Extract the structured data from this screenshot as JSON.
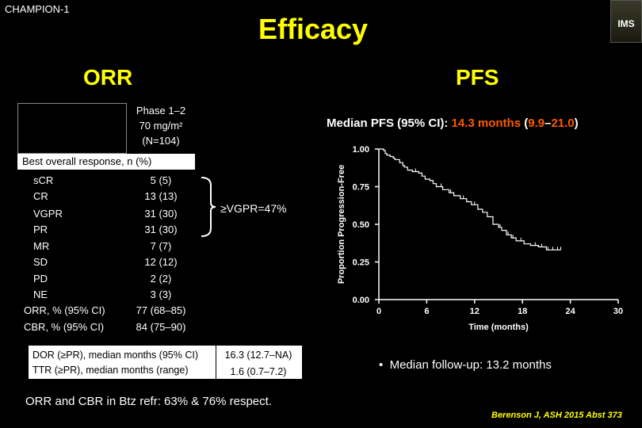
{
  "study_tag": "CHAMPION-1",
  "title": "Efficacy",
  "logo_text": "IMS",
  "orr": {
    "heading": "ORR",
    "column_header": [
      "Phase 1–2",
      "70 mg/m²",
      "(N=104)"
    ],
    "section_label": "Best overall response, n (%)",
    "rows": [
      {
        "label": "sCR",
        "value": "5 (5)"
      },
      {
        "label": "CR",
        "value": "13 (13)"
      },
      {
        "label": "VGPR",
        "value": "31 (30)"
      },
      {
        "label": "PR",
        "value": "31 (30)"
      },
      {
        "label": "MR",
        "value": "7 (7)"
      },
      {
        "label": "SD",
        "value": "12 (12)"
      },
      {
        "label": "PD",
        "value": "2 (2)"
      },
      {
        "label": "NE",
        "value": "3 (3)"
      }
    ],
    "summary_rows": [
      {
        "label": "ORR, % (95% CI)",
        "value": "77 (68–85)"
      },
      {
        "label": "CBR, % (95% CI)",
        "value": "84 (75–90)"
      }
    ],
    "vgpr_label": "≥VGPR=47%",
    "duration_rows": [
      {
        "label": "DOR (≥PR), median months (95% CI)",
        "value": "16.3 (12.7–NA)"
      },
      {
        "label": "TTR (≥PR), median months (range)",
        "value": "1.6 (0.7–7.2)"
      }
    ],
    "footnote": "ORR and CBR in Btz refr: 63% & 76% respect."
  },
  "pfs": {
    "heading": "PFS",
    "title_prefix": "Median PFS (95% CI): ",
    "title_highlight": "14.3 months",
    "title_ci_open": " (",
    "title_ci_low": "9.9",
    "title_ci_dash": "–",
    "title_ci_high": "21.0",
    "title_ci_close": ")",
    "followup": "Median follow-up: 13.2 months"
  },
  "chart_data": {
    "type": "line",
    "xlabel": "Time (months)",
    "ylabel": "Proportion Progression-Free",
    "xlim": [
      0,
      30
    ],
    "ylim": [
      0,
      1
    ],
    "xticks": [
      0,
      6,
      12,
      18,
      24,
      30
    ],
    "yticks": [
      0.0,
      0.25,
      0.5,
      0.75,
      1.0
    ],
    "ytick_labels": [
      "0.00",
      "0.25",
      "0.50",
      "0.75",
      "1.00"
    ],
    "series": [
      {
        "step": true,
        "x": [
          0,
          0.6,
          0.8,
          1.0,
          1.4,
          1.8,
          2.0,
          2.6,
          3.0,
          3.2,
          3.6,
          4.2,
          5.0,
          5.4,
          5.8,
          6.4,
          6.8,
          7.2,
          8.0,
          8.8,
          9.4,
          10.2,
          11.0,
          11.6,
          12.4,
          13.0,
          13.6,
          14.3,
          15.0,
          15.4,
          16.0,
          16.6,
          17.2,
          18.2,
          19.0,
          20.0,
          21.0,
          21.6,
          22.2,
          22.8
        ],
        "y": [
          1.0,
          0.99,
          0.97,
          0.96,
          0.95,
          0.94,
          0.93,
          0.91,
          0.89,
          0.88,
          0.86,
          0.85,
          0.84,
          0.82,
          0.8,
          0.79,
          0.77,
          0.75,
          0.73,
          0.71,
          0.69,
          0.67,
          0.65,
          0.63,
          0.6,
          0.58,
          0.55,
          0.5,
          0.48,
          0.46,
          0.43,
          0.41,
          0.39,
          0.37,
          0.36,
          0.35,
          0.33,
          0.33,
          0.33,
          0.33
        ]
      }
    ],
    "censor_x": [
      4.6,
      7.8,
      9.0,
      10.6,
      12.0,
      15.2,
      16.2,
      16.8,
      17.8,
      19.6,
      20.4,
      21.2,
      21.8,
      22.4,
      22.8
    ],
    "color": "#ffffff",
    "grid": false
  }
}
